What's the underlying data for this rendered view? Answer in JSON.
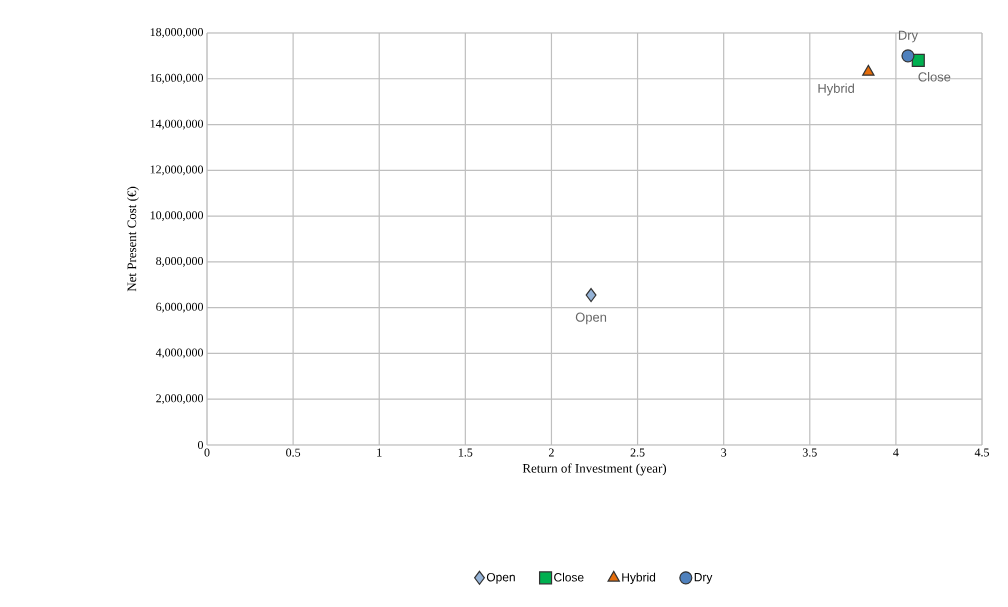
{
  "chart_data": {
    "type": "scatter",
    "xlabel": "Return of Investment (year)",
    "ylabel": "Net Present Cost (€)",
    "xlim": [
      0,
      4.5
    ],
    "xticks": [
      0,
      0.5,
      1,
      1.5,
      2,
      2.5,
      3,
      3.5,
      4,
      4.5
    ],
    "ylim": [
      0,
      18000000
    ],
    "yticks": [
      {
        "value": 0,
        "label": "0"
      },
      {
        "value": 2000000,
        "label": "2,000,000"
      },
      {
        "value": 4000000,
        "label": "4,000,000"
      },
      {
        "value": 6000000,
        "label": "6,000,000"
      },
      {
        "value": 8000000,
        "label": "8,000,000"
      },
      {
        "value": 10000000,
        "label": "10,000,000"
      },
      {
        "value": 12000000,
        "label": "12,000,000"
      },
      {
        "value": 14000000,
        "label": "14,000,000"
      },
      {
        "value": 16000000,
        "label": "16,000,000"
      },
      {
        "value": 18000000,
        "label": "18,000,000"
      }
    ],
    "grid": true,
    "legend": "bottom",
    "series": [
      {
        "name": "Open",
        "color": "#95b3d7",
        "marker": "diamond",
        "x": [
          2.23
        ],
        "values": [
          6550000
        ]
      },
      {
        "name": "Close",
        "color": "#00b050",
        "marker": "square",
        "x": [
          4.13
        ],
        "values": [
          16800000
        ]
      },
      {
        "name": "Hybrid",
        "color": "#e46c0a",
        "marker": "triangle",
        "x": [
          3.84
        ],
        "values": [
          16300000
        ]
      },
      {
        "name": "Dry",
        "color": "#4f81bd",
        "marker": "circle",
        "x": [
          4.07
        ],
        "values": [
          17000000
        ]
      }
    ],
    "annotations": [
      {
        "text": "Open",
        "x": 2.23,
        "y": 6550000
      },
      {
        "text": "Close",
        "x": 4.13,
        "y": 16800000
      },
      {
        "text": "Hybrid",
        "x": 3.84,
        "y": 16300000
      },
      {
        "text": "Dry",
        "x": 4.07,
        "y": 17000000
      }
    ]
  }
}
